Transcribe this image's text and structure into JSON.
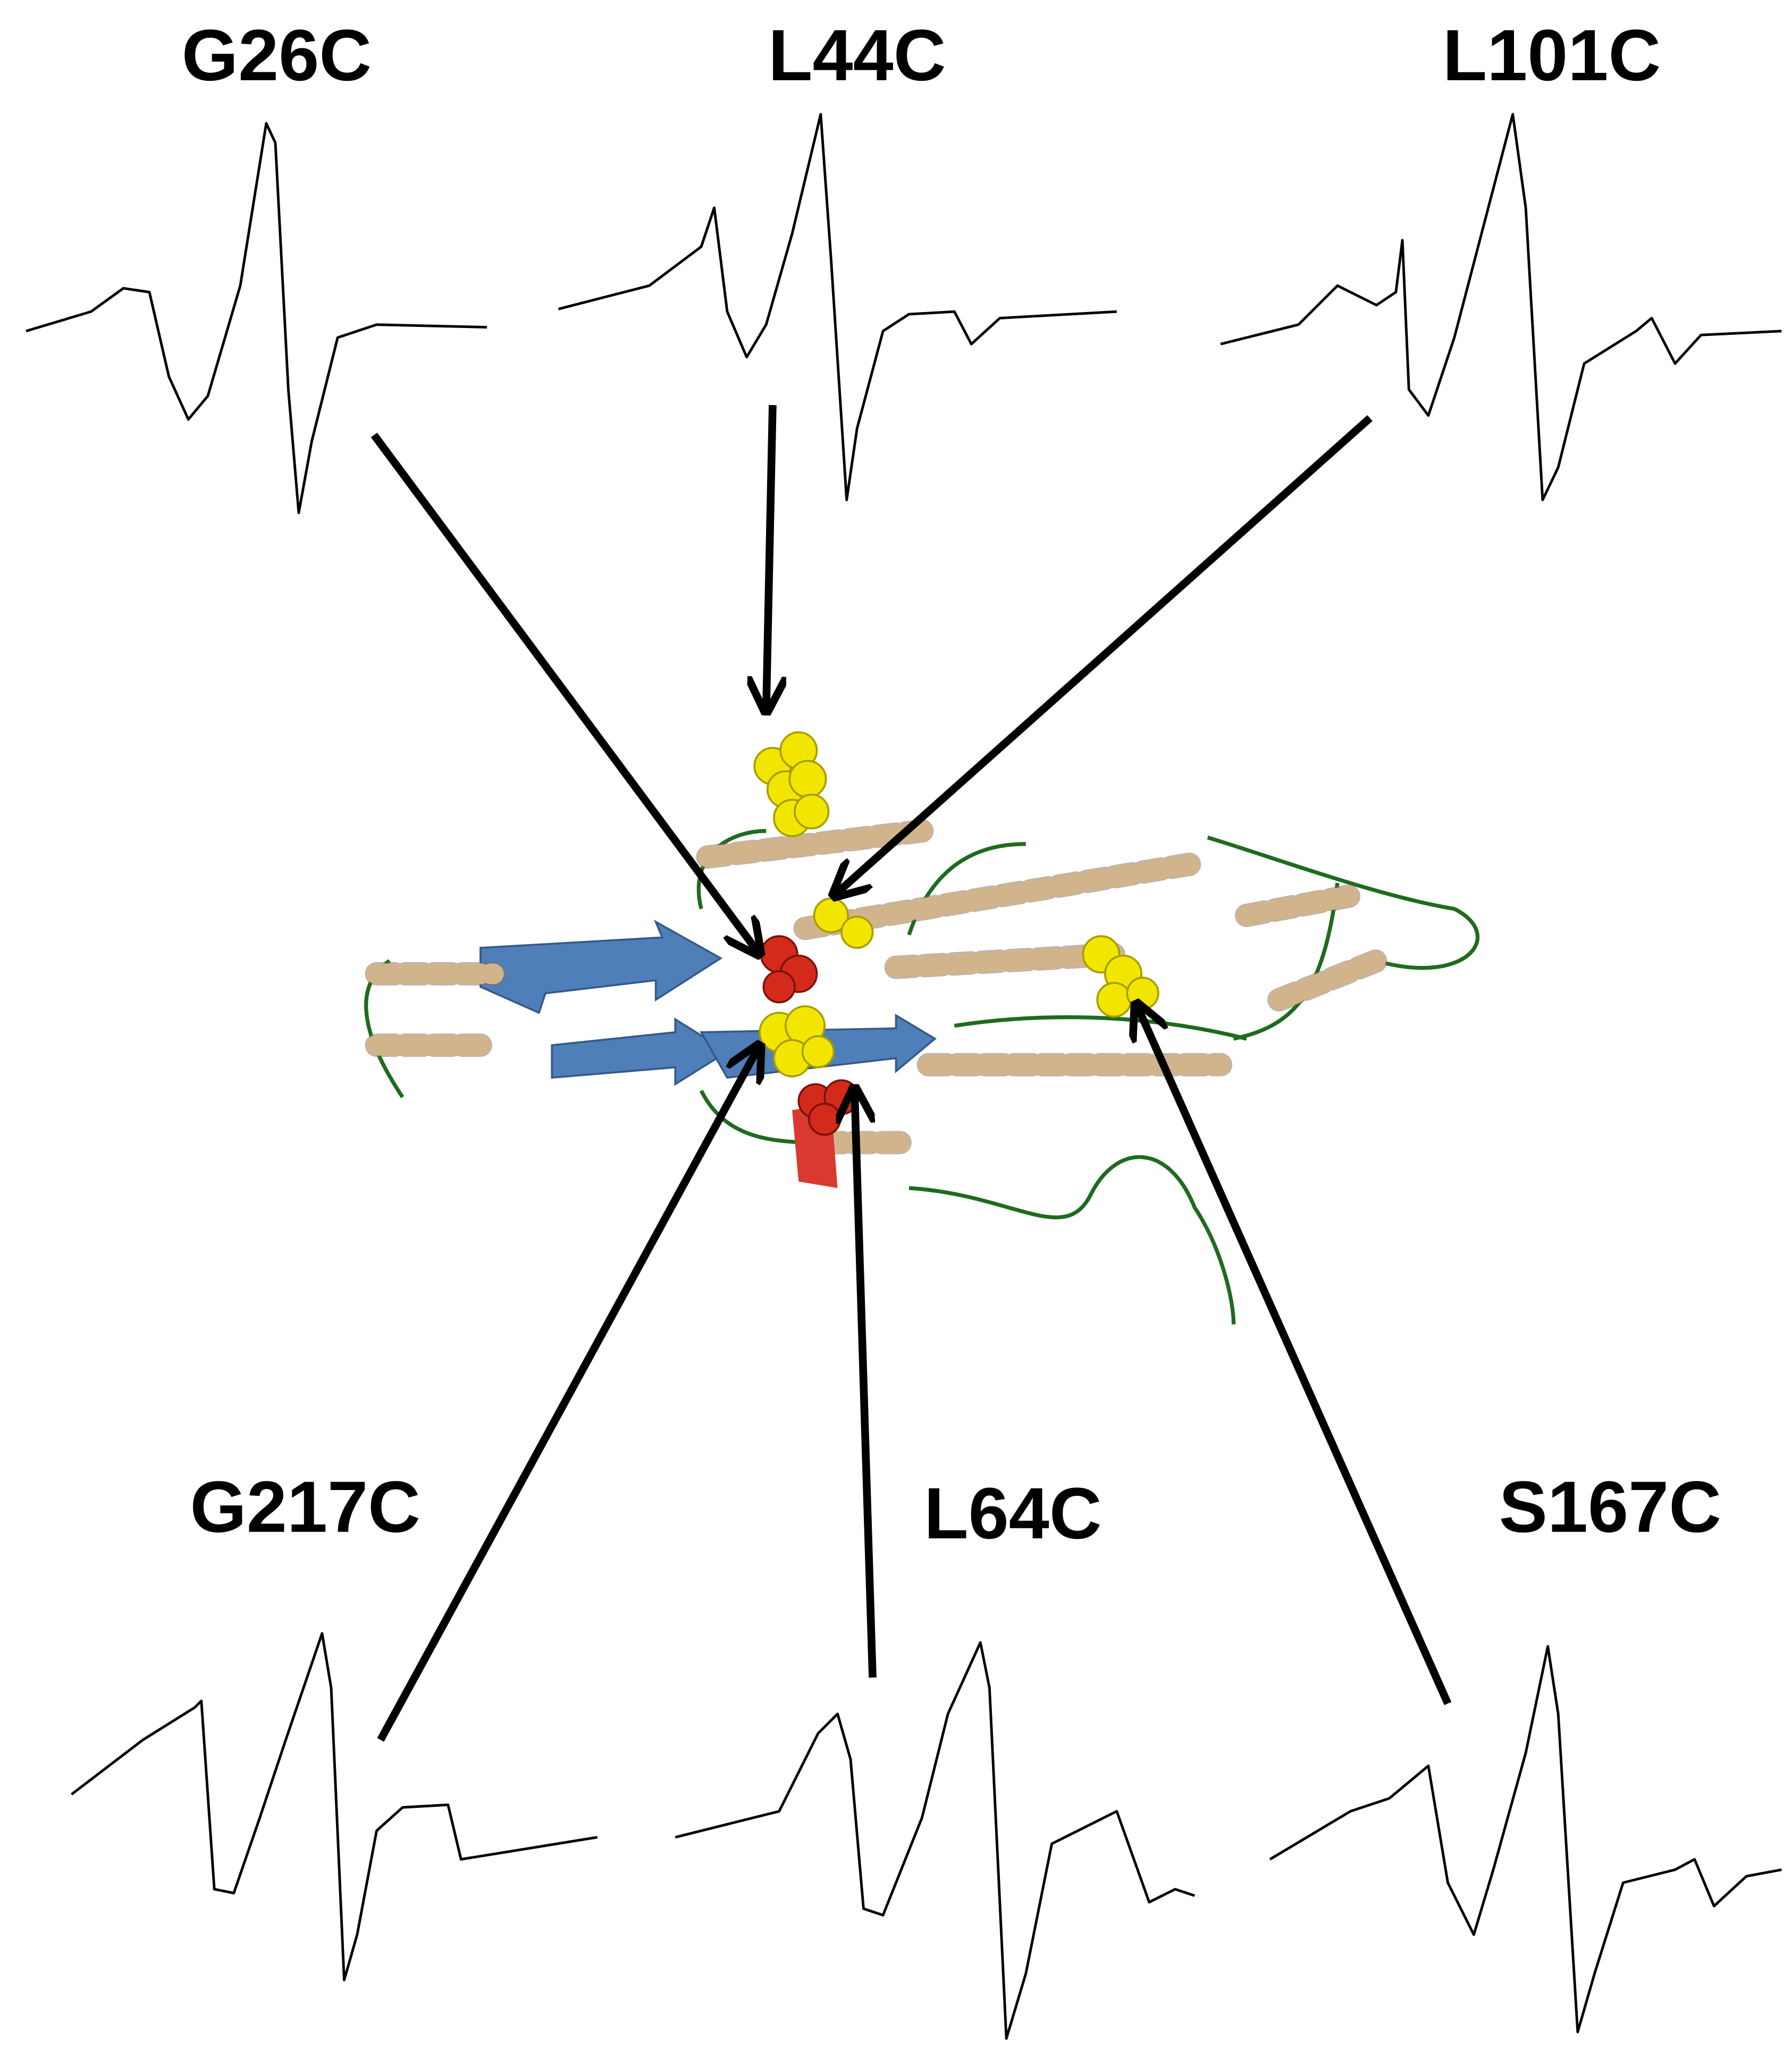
{
  "labels": [
    {
      "text": "G26C"
    },
    {
      "text": "L44C"
    },
    {
      "text": "L101C"
    },
    {
      "text": "G217C"
    },
    {
      "text": "L64C"
    },
    {
      "text": "S167C"
    }
  ]
}
